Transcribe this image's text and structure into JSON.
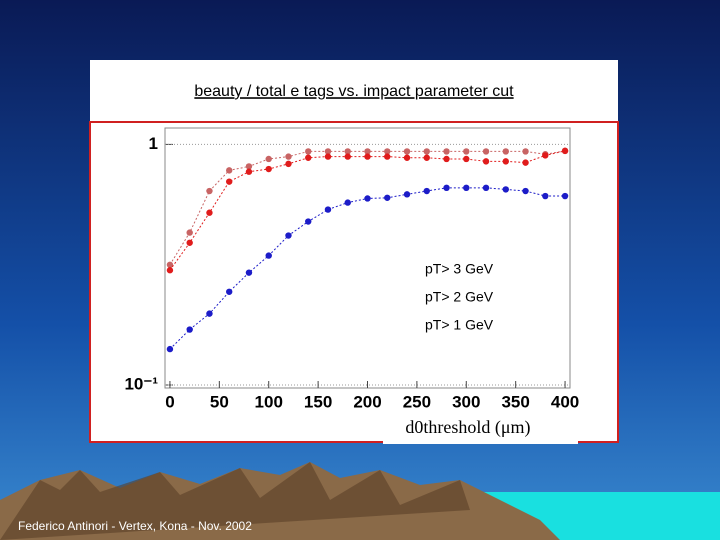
{
  "chart_data": {
    "type": "line",
    "title": "beauty / total e tags vs. impact parameter cut",
    "x_label": "d0threshold (μm)",
    "footer": "Federico Antinori - Vertex, Kona - Nov. 2002",
    "x": [
      0,
      20,
      40,
      60,
      80,
      100,
      120,
      140,
      160,
      180,
      200,
      220,
      240,
      260,
      280,
      300,
      320,
      340,
      360,
      380,
      400
    ],
    "series": [
      {
        "name": "pT> 3 GeV",
        "color": "#c86464",
        "values": [
          0.316,
          0.43,
          0.64,
          0.78,
          0.81,
          0.87,
          0.89,
          0.935,
          0.935,
          0.935,
          0.935,
          0.935,
          0.935,
          0.935,
          0.935,
          0.935,
          0.935,
          0.935,
          0.935,
          0.91,
          0.94
        ]
      },
      {
        "name": "pT> 2 GeV",
        "color": "#e01c1c",
        "values": [
          0.3,
          0.39,
          0.52,
          0.7,
          0.77,
          0.79,
          0.83,
          0.88,
          0.89,
          0.89,
          0.89,
          0.89,
          0.88,
          0.88,
          0.87,
          0.87,
          0.85,
          0.85,
          0.84,
          0.9,
          0.94
        ]
      },
      {
        "name": "pT> 1 GeV",
        "color": "#1c1cc8",
        "values": [
          0.141,
          0.17,
          0.198,
          0.244,
          0.293,
          0.345,
          0.418,
          0.478,
          0.536,
          0.573,
          0.596,
          0.6,
          0.62,
          0.64,
          0.66,
          0.66,
          0.66,
          0.65,
          0.64,
          0.61,
          0.61
        ]
      }
    ],
    "xlim": [
      -5,
      405
    ],
    "xticks": [
      0,
      50,
      100,
      150,
      200,
      250,
      300,
      350,
      400
    ],
    "ylim": [
      0.1,
      1.17
    ],
    "yticks": [
      1,
      {
        "value": 0.1,
        "label": "10⁻¹"
      }
    ],
    "log_y": true,
    "grid": true
  }
}
